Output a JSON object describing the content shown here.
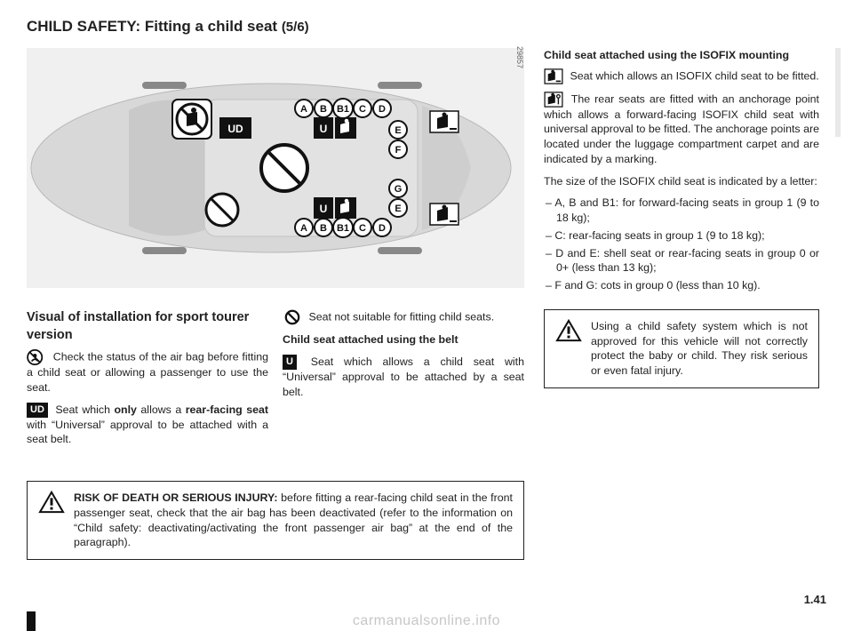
{
  "title_main": "CHILD SAFETY: Fitting a child seat ",
  "title_sub": "(5/6)",
  "diagram_id": "29857",
  "diagram": {
    "top_row": [
      "A",
      "B",
      "B1",
      "C",
      "D"
    ],
    "bottom_row": [
      "A",
      "B",
      "B1",
      "C",
      "D"
    ],
    "mid_right_top": [
      "E",
      "F"
    ],
    "mid_right_bot": [
      "G",
      "E"
    ],
    "ud_left": "UD",
    "u_mid": "U",
    "u_bot": "U"
  },
  "left_col": {
    "head": "Visual of installation for sport tourer version",
    "p1_pre": " Check the status of the air bag before fitting a child seat or allowing a passenger to use the seat.",
    "p2_badge": "UD",
    "p2_a": " Seat which ",
    "p2_b": "only",
    "p2_c": " allows a ",
    "p2_d": "rear-facing seat",
    "p2_e": " with “Universal” approval to be attached with a seat belt."
  },
  "mid_col": {
    "p1": " Seat not suitable for fitting child seats.",
    "p2_head": "Child seat attached using the belt",
    "p2_badge": "U",
    "p2": " Seat which allows a child seat with “Universal” approval to be attached by a seat belt."
  },
  "right_col": {
    "head": "Child seat attached using the ISOFIX mounting",
    "p1": " Seat which allows an ISOFIX child seat to be fitted.",
    "p2": " The rear seats are fitted with an anchorage point which allows a forward-facing ISOFIX child seat with universal approval to be fitted. The anchorage points are located under the luggage compartment carpet and are indicated by a marking.",
    "p3": "The size of the ISOFIX child seat is indicated by a letter:",
    "li1": "–  A, B and B1: for forward-facing seats in group 1 (9 to 18 kg);",
    "li2": "–  C: rear-facing seats in group 1 (9 to 18 kg);",
    "li3": "–  D and E: shell seat or rear-facing seats in group 0 or 0+ (less than 13 kg);",
    "li4": "–  F and G: cots in group 0 (less than 10 kg)."
  },
  "left_warn": {
    "bold": "RISK OF DEATH OR SERIOUS INJURY: ",
    "text": "before fitting a rear-facing child seat in the front passenger seat, check that the air bag has been deactivated (refer to the information on “Child safety: deactivating/activating the front passenger air bag” at the end of the paragraph)."
  },
  "right_warn": {
    "text": "Using a child safety system which is not approved for this vehicle will not correctly protect the baby or child. They risk serious or even fatal injury."
  },
  "page_num": "1.41",
  "watermark": "carmanualsonline.info",
  "colors": {
    "text": "#222222",
    "white": "#ffffff",
    "black": "#111111",
    "grey": "#c7c7c7"
  }
}
